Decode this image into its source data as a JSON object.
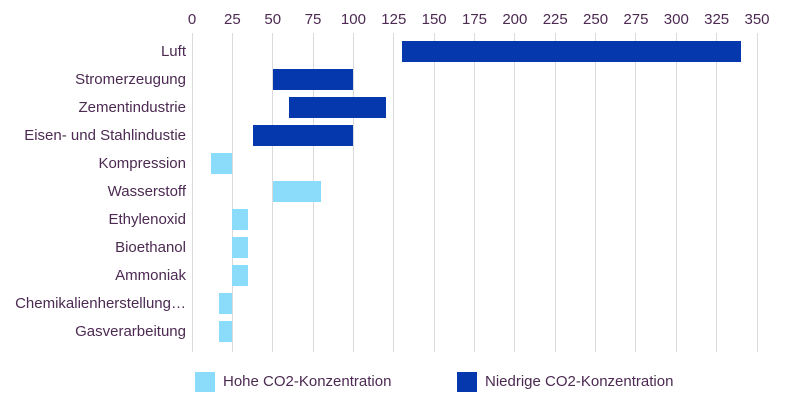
{
  "colors": {
    "high_co2": "#8BDBFB",
    "low_co2": "#0438AC",
    "grid": "#DADADA",
    "text": "#4C2A52",
    "background": "#FFFFFF"
  },
  "chart_data": {
    "type": "bar",
    "orientation": "horizontal",
    "title": "",
    "xlabel": "",
    "ylabel": "",
    "axis": {
      "position": "top",
      "min": 0,
      "max": 350,
      "tick_step": 25,
      "ticks": [
        0,
        25,
        50,
        75,
        100,
        125,
        150,
        175,
        200,
        225,
        250,
        275,
        300,
        325,
        350
      ]
    },
    "grid": "vertical",
    "categories": [
      "Luft",
      "Stromerzeugung",
      "Zementindustrie",
      "Eisen- und Stahlindustie",
      "Kompression",
      "Wasserstoff",
      "Ethylenoxid",
      "Bioethanol",
      "Ammoniak",
      "Chemikalienherstellung…",
      "Gasverarbeitung"
    ],
    "bars": [
      {
        "category": "Luft",
        "start": 130,
        "end": 340,
        "series": "Niedrige CO2-Konzentration",
        "color_key": "low_co2"
      },
      {
        "category": "Stromerzeugung",
        "start": 50,
        "end": 100,
        "series": "Niedrige CO2-Konzentration",
        "color_key": "low_co2"
      },
      {
        "category": "Zementindustrie",
        "start": 60,
        "end": 120,
        "series": "Niedrige CO2-Konzentration",
        "color_key": "low_co2"
      },
      {
        "category": "Eisen- und Stahlindustie",
        "start": 38,
        "end": 100,
        "series": "Niedrige CO2-Konzentration",
        "color_key": "low_co2"
      },
      {
        "category": "Kompression",
        "start": 12,
        "end": 25,
        "series": "Hohe CO2-Konzentration",
        "color_key": "high_co2"
      },
      {
        "category": "Wasserstoff",
        "start": 50,
        "end": 80,
        "series": "Hohe CO2-Konzentration",
        "color_key": "high_co2"
      },
      {
        "category": "Ethylenoxid",
        "start": 25,
        "end": 35,
        "series": "Hohe CO2-Konzentration",
        "color_key": "high_co2"
      },
      {
        "category": "Bioethanol",
        "start": 25,
        "end": 35,
        "series": "Hohe CO2-Konzentration",
        "color_key": "high_co2"
      },
      {
        "category": "Ammoniak",
        "start": 25,
        "end": 35,
        "series": "Hohe CO2-Konzentration",
        "color_key": "high_co2"
      },
      {
        "category": "Chemikalienherstellung…",
        "start": 17,
        "end": 25,
        "series": "Hohe CO2-Konzentration",
        "color_key": "high_co2"
      },
      {
        "category": "Gasverarbeitung",
        "start": 17,
        "end": 25,
        "series": "Hohe CO2-Konzentration",
        "color_key": "high_co2"
      }
    ],
    "legend": [
      {
        "label": "Hohe CO2-Konzentration",
        "color_key": "high_co2"
      },
      {
        "label": "Niedrige CO2-Konzentration",
        "color_key": "low_co2"
      }
    ],
    "legend_position": "bottom"
  }
}
